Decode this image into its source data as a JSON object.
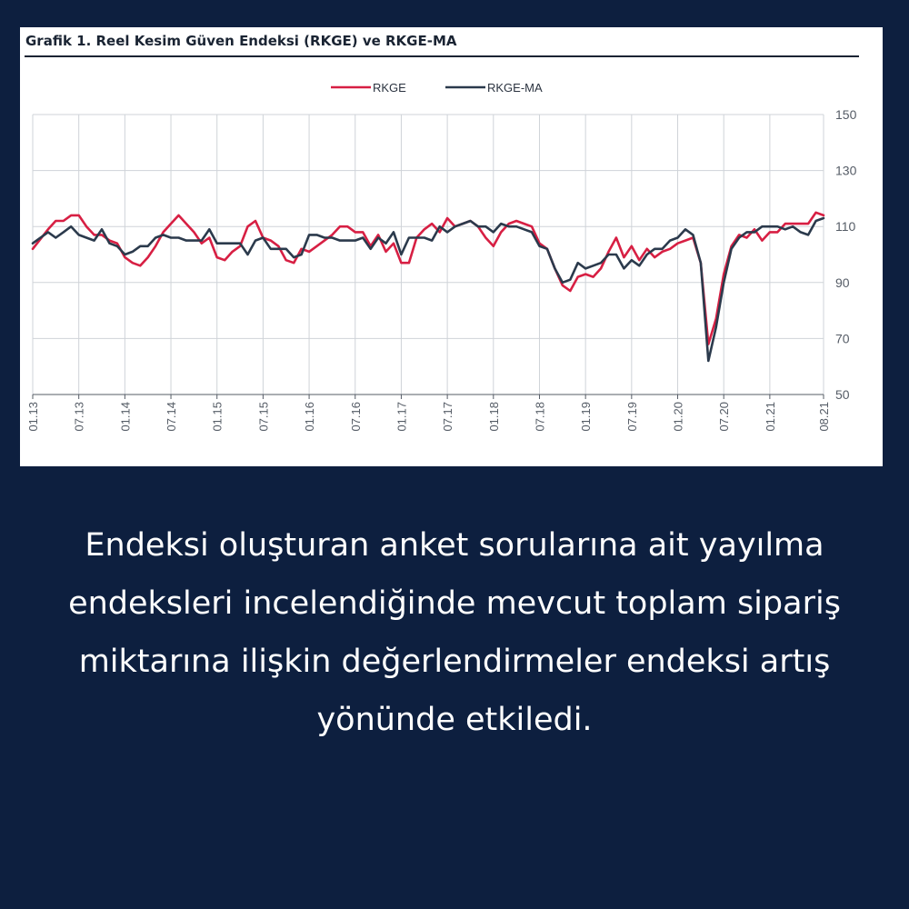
{
  "chart_title": "Grafik 1. Reel Kesim Güven Endeksi (RKGE) ve RKGE-MA",
  "caption": "Endeksi oluşturan anket sorularına ait yayılma endeksleri incelendiğinde mevcut toplam sipariş miktarına ilişkin değerlendirmeler endeksi artış yönünde  etkiledi.",
  "colors": {
    "background": "#0d1f3f",
    "card": "#ffffff",
    "rkge": "#d71f43",
    "rkge_ma": "#2b3a4c",
    "grid": "#cfd3d8"
  },
  "chart_data": {
    "type": "line",
    "title": "Grafik 1. Reel Kesim Güven Endeksi (RKGE) ve RKGE-MA",
    "xlabel": "",
    "ylabel": "",
    "ylim": [
      50,
      150
    ],
    "yticks": [
      50,
      70,
      90,
      110,
      130,
      150
    ],
    "x_range": [
      "01.13",
      "08.21"
    ],
    "xticks": [
      "01.13",
      "07.13",
      "01.14",
      "07.14",
      "01.15",
      "07.15",
      "01.16",
      "07.16",
      "01.17",
      "07.17",
      "01.18",
      "07.18",
      "01.19",
      "07.19",
      "01.20",
      "07.20",
      "01.21",
      "08.21"
    ],
    "grid": true,
    "legend_position": "top-center",
    "series": [
      {
        "name": "RKGE",
        "color": "#d71f43",
        "points": [
          [
            "01.13",
            102
          ],
          [
            "03.13",
            109
          ],
          [
            "04.13",
            112
          ],
          [
            "05.13",
            112
          ],
          [
            "06.13",
            114
          ],
          [
            "07.13",
            114
          ],
          [
            "08.13",
            110
          ],
          [
            "09.13",
            107
          ],
          [
            "10.13",
            107
          ],
          [
            "11.13",
            105
          ],
          [
            "12.13",
            104
          ],
          [
            "01.14",
            99
          ],
          [
            "02.14",
            97
          ],
          [
            "03.14",
            96
          ],
          [
            "04.14",
            99
          ],
          [
            "05.14",
            103
          ],
          [
            "06.14",
            108
          ],
          [
            "07.14",
            111
          ],
          [
            "08.14",
            114
          ],
          [
            "09.14",
            111
          ],
          [
            "10.14",
            108
          ],
          [
            "11.14",
            104
          ],
          [
            "12.14",
            106
          ],
          [
            "01.15",
            99
          ],
          [
            "02.15",
            98
          ],
          [
            "03.15",
            101
          ],
          [
            "04.15",
            103
          ],
          [
            "05.15",
            110
          ],
          [
            "06.15",
            112
          ],
          [
            "07.15",
            106
          ],
          [
            "08.15",
            105
          ],
          [
            "09.15",
            103
          ],
          [
            "10.15",
            98
          ],
          [
            "11.15",
            97
          ],
          [
            "12.15",
            102
          ],
          [
            "01.16",
            101
          ],
          [
            "02.16",
            103
          ],
          [
            "03.16",
            105
          ],
          [
            "04.16",
            107
          ],
          [
            "05.16",
            110
          ],
          [
            "06.16",
            110
          ],
          [
            "07.16",
            108
          ],
          [
            "08.16",
            108
          ],
          [
            "09.16",
            103
          ],
          [
            "10.16",
            107
          ],
          [
            "11.16",
            101
          ],
          [
            "12.16",
            104
          ],
          [
            "01.17",
            97
          ],
          [
            "02.17",
            97
          ],
          [
            "03.17",
            106
          ],
          [
            "04.17",
            109
          ],
          [
            "05.17",
            111
          ],
          [
            "06.17",
            108
          ],
          [
            "07.17",
            113
          ],
          [
            "08.17",
            110
          ],
          [
            "09.17",
            111
          ],
          [
            "10.17",
            112
          ],
          [
            "11.17",
            110
          ],
          [
            "12.17",
            106
          ],
          [
            "01.18",
            103
          ],
          [
            "02.18",
            108
          ],
          [
            "03.18",
            111
          ],
          [
            "04.18",
            112
          ],
          [
            "05.18",
            111
          ],
          [
            "06.18",
            110
          ],
          [
            "07.18",
            104
          ],
          [
            "08.18",
            102
          ],
          [
            "09.18",
            95
          ],
          [
            "10.18",
            89
          ],
          [
            "11.18",
            87
          ],
          [
            "12.18",
            92
          ],
          [
            "01.19",
            93
          ],
          [
            "02.19",
            92
          ],
          [
            "03.19",
            95
          ],
          [
            "04.19",
            101
          ],
          [
            "05.19",
            106
          ],
          [
            "06.19",
            99
          ],
          [
            "07.19",
            103
          ],
          [
            "08.19",
            98
          ],
          [
            "09.19",
            102
          ],
          [
            "10.19",
            99
          ],
          [
            "11.19",
            101
          ],
          [
            "12.19",
            102
          ],
          [
            "01.20",
            104
          ],
          [
            "02.20",
            105
          ],
          [
            "03.20",
            106
          ],
          [
            "04.20",
            97
          ],
          [
            "05.20",
            68
          ],
          [
            "06.20",
            77
          ],
          [
            "07.20",
            93
          ],
          [
            "08.20",
            103
          ],
          [
            "09.20",
            107
          ],
          [
            "10.20",
            106
          ],
          [
            "11.20",
            109
          ],
          [
            "12.20",
            105
          ],
          [
            "01.21",
            108
          ],
          [
            "02.21",
            108
          ],
          [
            "03.21",
            111
          ],
          [
            "04.21",
            111
          ],
          [
            "05.21",
            111
          ],
          [
            "06.21",
            111
          ],
          [
            "07.21",
            115
          ],
          [
            "08.21",
            114
          ]
        ]
      },
      {
        "name": "RKGE-MA",
        "color": "#2b3a4c",
        "points": [
          [
            "01.13",
            104
          ],
          [
            "03.13",
            108
          ],
          [
            "04.13",
            106
          ],
          [
            "05.13",
            108
          ],
          [
            "06.13",
            110
          ],
          [
            "07.13",
            107
          ],
          [
            "08.13",
            106
          ],
          [
            "09.13",
            105
          ],
          [
            "10.13",
            109
          ],
          [
            "11.13",
            104
          ],
          [
            "12.13",
            103
          ],
          [
            "01.14",
            100
          ],
          [
            "02.14",
            101
          ],
          [
            "03.14",
            103
          ],
          [
            "04.14",
            103
          ],
          [
            "05.14",
            106
          ],
          [
            "06.14",
            107
          ],
          [
            "07.14",
            106
          ],
          [
            "08.14",
            106
          ],
          [
            "09.14",
            105
          ],
          [
            "10.14",
            105
          ],
          [
            "11.14",
            105
          ],
          [
            "12.14",
            109
          ],
          [
            "01.15",
            104
          ],
          [
            "02.15",
            104
          ],
          [
            "03.15",
            104
          ],
          [
            "04.15",
            104
          ],
          [
            "05.15",
            100
          ],
          [
            "06.15",
            105
          ],
          [
            "07.15",
            106
          ],
          [
            "08.15",
            102
          ],
          [
            "09.15",
            102
          ],
          [
            "10.15",
            102
          ],
          [
            "11.15",
            99
          ],
          [
            "12.15",
            100
          ],
          [
            "01.16",
            107
          ],
          [
            "02.16",
            107
          ],
          [
            "03.16",
            106
          ],
          [
            "04.16",
            106
          ],
          [
            "05.16",
            105
          ],
          [
            "06.16",
            105
          ],
          [
            "07.16",
            105
          ],
          [
            "08.16",
            106
          ],
          [
            "09.16",
            102
          ],
          [
            "10.16",
            106
          ],
          [
            "11.16",
            104
          ],
          [
            "12.16",
            108
          ],
          [
            "01.17",
            100
          ],
          [
            "02.17",
            106
          ],
          [
            "03.17",
            106
          ],
          [
            "04.17",
            106
          ],
          [
            "05.17",
            105
          ],
          [
            "06.17",
            110
          ],
          [
            "07.17",
            108
          ],
          [
            "08.17",
            110
          ],
          [
            "09.17",
            111
          ],
          [
            "10.17",
            112
          ],
          [
            "11.17",
            110
          ],
          [
            "12.17",
            110
          ],
          [
            "01.18",
            108
          ],
          [
            "02.18",
            111
          ],
          [
            "03.18",
            110
          ],
          [
            "04.18",
            110
          ],
          [
            "05.18",
            109
          ],
          [
            "06.18",
            108
          ],
          [
            "07.18",
            103
          ],
          [
            "08.18",
            102
          ],
          [
            "09.18",
            95
          ],
          [
            "10.18",
            90
          ],
          [
            "11.18",
            91
          ],
          [
            "12.18",
            97
          ],
          [
            "01.19",
            95
          ],
          [
            "02.19",
            96
          ],
          [
            "03.19",
            97
          ],
          [
            "04.19",
            100
          ],
          [
            "05.19",
            100
          ],
          [
            "06.19",
            95
          ],
          [
            "07.19",
            98
          ],
          [
            "08.19",
            96
          ],
          [
            "09.19",
            100
          ],
          [
            "10.19",
            102
          ],
          [
            "11.19",
            102
          ],
          [
            "12.19",
            105
          ],
          [
            "01.20",
            106
          ],
          [
            "02.20",
            109
          ],
          [
            "03.20",
            107
          ],
          [
            "04.20",
            97
          ],
          [
            "05.20",
            62
          ],
          [
            "06.20",
            74
          ],
          [
            "07.20",
            90
          ],
          [
            "08.20",
            102
          ],
          [
            "09.20",
            106
          ],
          [
            "10.20",
            108
          ],
          [
            "11.20",
            108
          ],
          [
            "12.20",
            110
          ],
          [
            "01.21",
            110
          ],
          [
            "02.21",
            110
          ],
          [
            "03.21",
            109
          ],
          [
            "04.21",
            110
          ],
          [
            "05.21",
            108
          ],
          [
            "06.21",
            107
          ],
          [
            "07.21",
            112
          ],
          [
            "08.21",
            113
          ]
        ]
      }
    ]
  }
}
